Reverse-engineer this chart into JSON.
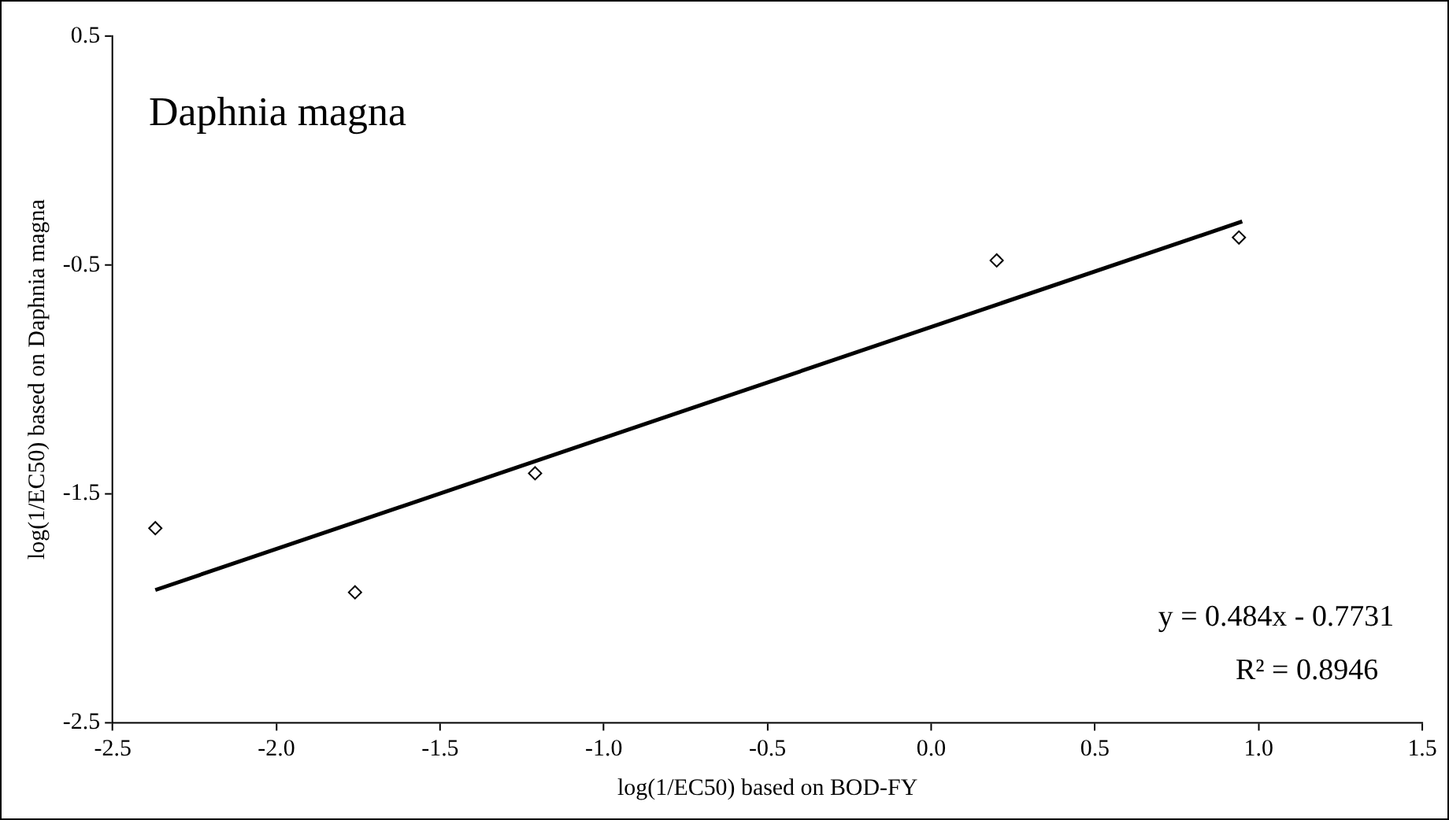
{
  "chart_data": {
    "type": "scatter",
    "title": "Daphnia magna",
    "xlabel": "log(1/EC50) based on BOD-FY",
    "ylabel": "log(1/EC50) based on Daphnia magna",
    "xlim": [
      -2.5,
      1.5
    ],
    "xticks": [
      -2.5,
      {
        "value": -2,
        "label": "-2.0"
      },
      -1.5,
      {
        "value": -1,
        "label": "-1.0"
      },
      -0.5,
      {
        "value": 0,
        "label": "0.0"
      },
      0.5,
      {
        "value": 1,
        "label": "1.0"
      },
      1.5
    ],
    "ylim": [
      -2.5,
      0.5
    ],
    "yticks": [
      -2.5,
      -1.5,
      -0.5,
      0.5
    ],
    "series": [
      {
        "color": "#000000",
        "marker": "diamond",
        "x": [
          -2.37,
          -1.76,
          -1.21,
          0.2,
          0.94
        ],
        "values": [
          -1.65,
          -1.93,
          -1.41,
          -0.48,
          -0.38
        ]
      },
      {
        "type": "line",
        "color": "#000000",
        "marker": "none",
        "line_style": "solid",
        "x": [
          -2.37,
          0.95
        ],
        "values": [
          -1.92,
          -0.31
        ]
      }
    ],
    "annotations": [
      "y = 0.484x - 0.7731",
      "R² = 0.8946"
    ]
  }
}
